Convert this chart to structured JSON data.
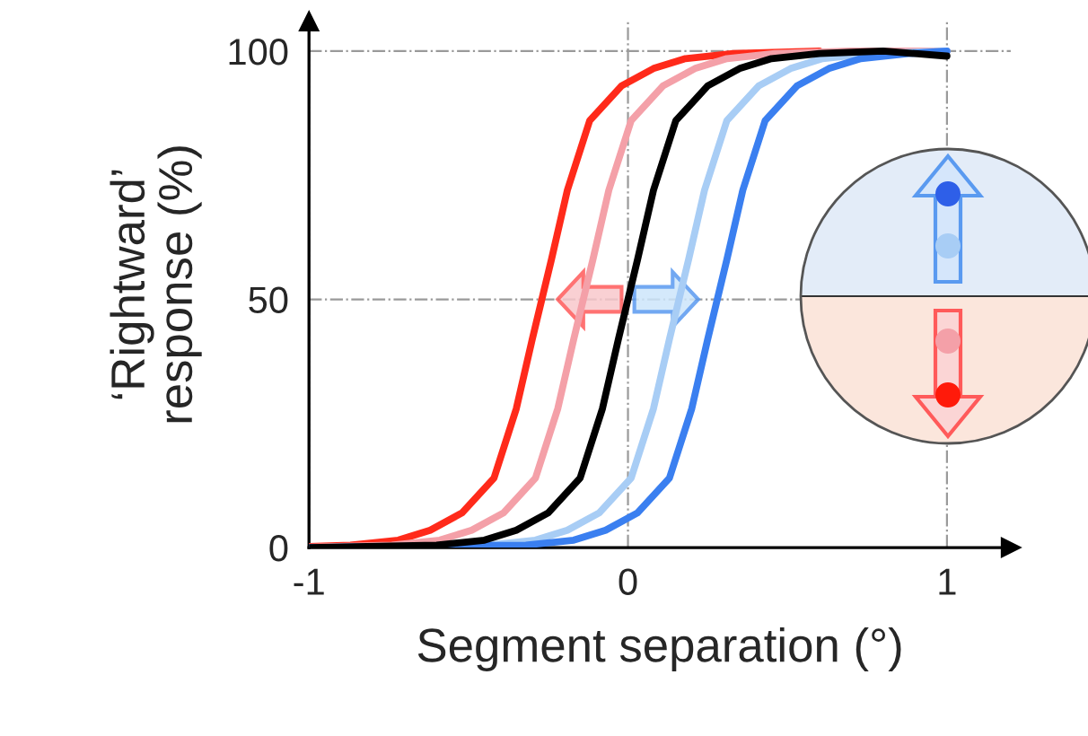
{
  "chart_data": {
    "type": "line",
    "xlabel": "Segment separation (°)",
    "ylabel": "‘Rightward’ response (%)",
    "xlim": [
      -1,
      1.2
    ],
    "ylim": [
      0,
      106
    ],
    "xticks": [
      -1,
      0,
      1
    ],
    "yticks": [
      0,
      50,
      100
    ],
    "grid": true,
    "marker": "none",
    "line_style": "solid",
    "series": [
      {
        "color": "#ff2a1a",
        "x": [
          -1,
          -0.87,
          -0.72,
          -0.62,
          -0.52,
          -0.42,
          -0.35,
          -0.3,
          -0.27,
          -0.24,
          -0.19,
          -0.12,
          -0.02,
          0.08,
          0.18,
          0.33,
          0.6
        ],
        "values": [
          0.2,
          0.5,
          1.5,
          3.5,
          7,
          14,
          28,
          42,
          50,
          58,
          72,
          86,
          93,
          96.5,
          98.5,
          99.5,
          100
        ]
      },
      {
        "color": "#f4a0a8",
        "x": [
          -1,
          -0.74,
          -0.59,
          -0.49,
          -0.39,
          -0.29,
          -0.22,
          -0.17,
          -0.14,
          -0.11,
          -0.06,
          0.01,
          0.11,
          0.21,
          0.31,
          0.46,
          0.7,
          1
        ],
        "values": [
          0.1,
          0.5,
          1.5,
          3.5,
          7,
          14,
          28,
          42,
          50,
          58,
          72,
          86,
          93,
          96.5,
          98.5,
          99.5,
          100,
          100
        ]
      },
      {
        "color": "#a8cdf5",
        "x": [
          -1,
          -0.44,
          -0.29,
          -0.19,
          -0.09,
          0.01,
          0.08,
          0.13,
          0.16,
          0.19,
          0.24,
          0.31,
          0.41,
          0.51,
          0.61,
          0.76,
          1
        ],
        "values": [
          0,
          0.5,
          1.5,
          3.5,
          7,
          14,
          28,
          42,
          50,
          58,
          72,
          86,
          93,
          96.5,
          98.5,
          99.5,
          100
        ]
      },
      {
        "color": "#3a7ff0",
        "x": [
          -1,
          -0.32,
          -0.17,
          -0.07,
          0.03,
          0.13,
          0.2,
          0.25,
          0.28,
          0.31,
          0.36,
          0.43,
          0.53,
          0.63,
          0.73,
          0.88,
          1
        ],
        "values": [
          0,
          0.5,
          1.5,
          3.5,
          7,
          14,
          28,
          42,
          50,
          58,
          72,
          86,
          93,
          96.5,
          98.5,
          99.5,
          100
        ]
      },
      {
        "color": "#000000",
        "x": [
          -1,
          -0.6,
          -0.45,
          -0.35,
          -0.25,
          -0.15,
          -0.08,
          -0.03,
          0,
          0.03,
          0.08,
          0.15,
          0.25,
          0.35,
          0.45,
          0.6,
          0.8,
          1
        ],
        "values": [
          0,
          0.5,
          1.5,
          3.5,
          7,
          14,
          28,
          42,
          50,
          58,
          72,
          86,
          93,
          96.5,
          98.5,
          99.5,
          100,
          99
        ]
      }
    ]
  }
}
